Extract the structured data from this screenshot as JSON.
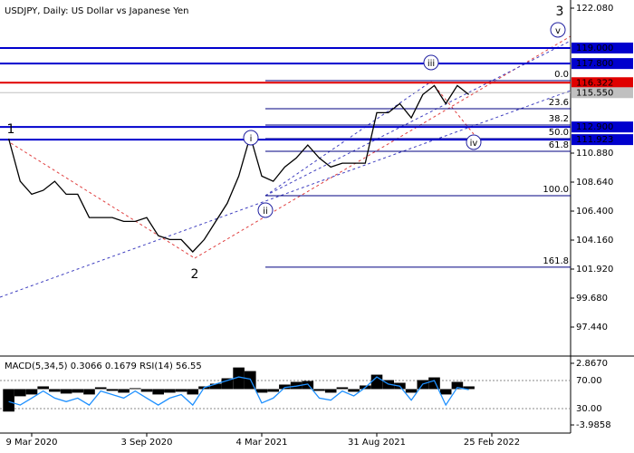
{
  "chart_data": [
    {
      "type": "line",
      "title": "USDJPY, Daily:  US Dollar vs Japanese Yen",
      "categories": [
        null,
        null,
        "9 Mar 2020",
        null,
        null,
        null,
        null,
        null,
        null,
        null,
        null,
        null,
        "3 Sep 2020",
        null,
        null,
        null,
        null,
        null,
        null,
        null,
        null,
        null,
        "4 Mar 2021",
        null,
        null,
        null,
        null,
        null,
        null,
        null,
        null,
        null,
        "31 Aug 2021",
        null,
        null,
        null,
        null,
        null,
        null,
        null,
        null,
        null,
        "25 Feb 2022",
        null,
        null,
        null,
        null,
        null,
        null
      ],
      "values": [
        112.0,
        108.7,
        107.7,
        108.0,
        108.7,
        107.7,
        107.7,
        105.9,
        105.9,
        105.9,
        105.6,
        105.6,
        105.9,
        104.5,
        104.2,
        104.2,
        103.25,
        104.2,
        105.6,
        107.0,
        109.1,
        112.2,
        109.1,
        108.7,
        109.8,
        110.5,
        111.5,
        110.5,
        109.8,
        110.1,
        110.1,
        110.1,
        114.0,
        114.0,
        114.7,
        113.6,
        115.4,
        116.1,
        114.7,
        116.1,
        115.4,
        null,
        null,
        null,
        null,
        null,
        null,
        null,
        null
      ],
      "color": "#000000",
      "ylim": [
        95.27,
        122.71
      ],
      "yticks": [
        {
          "value": 122.08,
          "label": "122.080"
        },
        {
          "value": 110.88,
          "label": "110.880"
        },
        {
          "value": 108.64,
          "label": "108.640"
        },
        {
          "value": 106.4,
          "label": "106.400"
        },
        {
          "value": 104.16,
          "label": "104.160"
        },
        {
          "value": 101.92,
          "label": "101.920"
        },
        {
          "value": 99.68,
          "label": "99.680"
        },
        {
          "value": 97.44,
          "label": "97.440"
        }
      ],
      "levels": [
        {
          "value": 119.0,
          "label": "119.000",
          "color": "#0000cd"
        },
        {
          "value": 117.8,
          "label": "117.800",
          "color": "#0000cd"
        },
        {
          "value": 116.322,
          "label": "116.322",
          "color": "#e00000"
        },
        {
          "value": 115.55,
          "label": "115.550",
          "color": "#c0c0c0"
        },
        {
          "value": 112.9,
          "label": "112.900",
          "color": "#0000cd"
        },
        {
          "value": 111.923,
          "label": "111.923",
          "color": "#0000cd"
        }
      ],
      "fib_levels": [
        {
          "value": 116.48,
          "label": "0.0"
        },
        {
          "value": 114.31,
          "label": "23.6"
        },
        {
          "value": 113.05,
          "label": "38.2"
        },
        {
          "value": 112.0,
          "label": "50.0"
        },
        {
          "value": 111.02,
          "label": "61.8"
        },
        {
          "value": 107.59,
          "label": "100.0"
        },
        {
          "value": 102.07,
          "label": "161.8"
        }
      ],
      "wave_labels": [
        "1",
        "2",
        "3",
        "i",
        "ii",
        "iii",
        "iv",
        "v"
      ]
    },
    {
      "type": "combo",
      "title": "MACD(5,34,5) 0.3066 0.1679 RSI(14) 56.55",
      "ylim": [
        -4.89,
        3.57
      ],
      "yticks": [
        {
          "value": 2.867,
          "label": "2.8670"
        },
        {
          "value": -3.9858,
          "label": "-3.9858"
        }
      ],
      "y2lim": [
        -4.8,
        103.5
      ],
      "y2ticks": [
        {
          "value": 70,
          "label": "70.00"
        },
        {
          "value": 30,
          "label": "30.00"
        }
      ],
      "series": [
        {
          "kind": "bar",
          "color": "#000000",
          "values": [
            -2.5,
            -0.8,
            -0.6,
            0.3,
            -0.3,
            -0.5,
            -0.4,
            -0.6,
            0.2,
            -0.2,
            -0.4,
            0.1,
            -0.3,
            -0.6,
            -0.4,
            -0.3,
            -0.6,
            0.3,
            0.6,
            1.2,
            2.4,
            2.0,
            -0.4,
            -0.3,
            0.5,
            0.8,
            0.9,
            -0.2,
            -0.4,
            0.2,
            -0.3,
            0.4,
            1.6,
            1.0,
            0.7,
            -0.4,
            1.0,
            1.3,
            -0.6,
            0.8,
            0.3
          ]
        },
        {
          "kind": "line",
          "axis": "y2",
          "color": "#1e90ff",
          "values": [
            40,
            35,
            45,
            55,
            45,
            40,
            45,
            35,
            55,
            50,
            45,
            55,
            45,
            35,
            45,
            50,
            35,
            60,
            65,
            70,
            75,
            72,
            38,
            45,
            60,
            62,
            65,
            45,
            42,
            55,
            48,
            60,
            75,
            65,
            62,
            42,
            65,
            70,
            35,
            60,
            57
          ]
        }
      ]
    }
  ]
}
